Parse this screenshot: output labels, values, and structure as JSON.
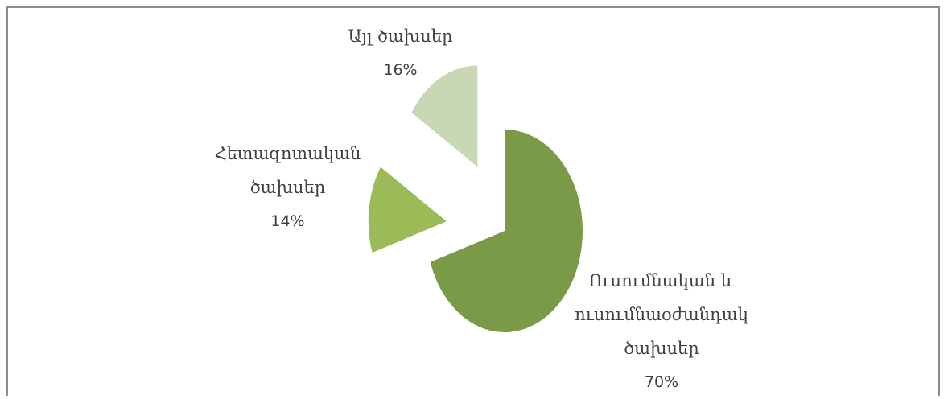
{
  "chart_data": {
    "type": "pie",
    "categories": [
      "Ուսումնական և ուսումնաօժանդակ ծախսեր",
      "Հետազոտական ծախսեր",
      "Այլ ծախսեր"
    ],
    "values": [
      70,
      14,
      16
    ],
    "value_labels": [
      "70%",
      "14%",
      "16%"
    ],
    "colors": [
      "#7a9a48",
      "#9bbb59",
      "#c9d8b4"
    ]
  }
}
